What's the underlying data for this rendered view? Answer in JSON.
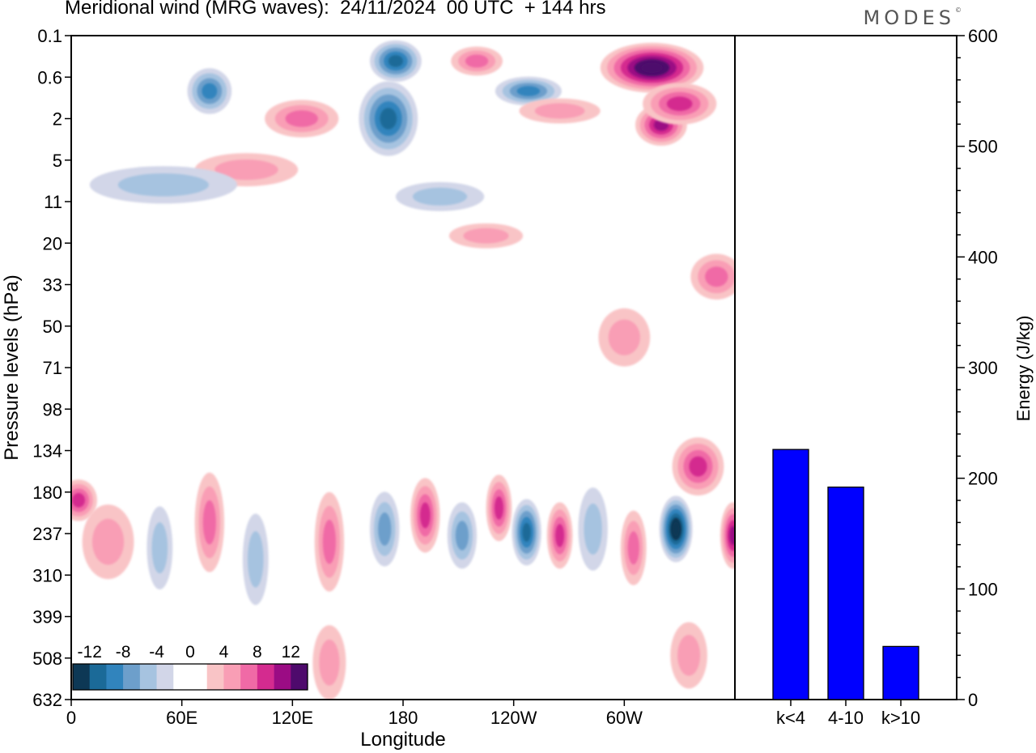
{
  "title": "Meridional wind (MRG waves):  24/11/2024  00 UTC  + 144 hrs",
  "logo": "MODES",
  "chart_data": [
    {
      "type": "heatmap",
      "xlabel": "Longitude",
      "ylabel": "Pressure levels (hPa)",
      "xticks": [
        "0",
        "60E",
        "120E",
        "180",
        "120W",
        "60W"
      ],
      "xtick_values": [
        0,
        60,
        120,
        180,
        240,
        300
      ],
      "xlim": [
        0,
        360
      ],
      "yticks": [
        "0.1",
        "0.6",
        "2",
        "5",
        "11",
        "20",
        "33",
        "50",
        "71",
        "98",
        "134",
        "180",
        "237",
        "310",
        "399",
        "508",
        "632"
      ],
      "colorbar": {
        "labels": [
          "-12",
          "-8",
          "-4",
          "0",
          "4",
          "8",
          "12"
        ],
        "label_values": [
          -12,
          -8,
          -4,
          0,
          4,
          8,
          12
        ],
        "range": [
          -14,
          14
        ],
        "colors": [
          "#0d3855",
          "#1b6a98",
          "#3184bd",
          "#6d9fcb",
          "#a6c3e0",
          "#d2d6e8",
          "#ffffff",
          "#ffffff",
          "#f9c4c6",
          "#f99eb5",
          "#f06aa6",
          "#d42b8f",
          "#9b0c84",
          "#4e0a6c"
        ]
      },
      "features": [
        {
          "lon": 75,
          "lev": 0.9,
          "w": 12,
          "h": 0.55,
          "v": -8
        },
        {
          "lon": 172,
          "lev": 2.0,
          "w": 16,
          "h": 0.9,
          "v": -10
        },
        {
          "lon": 176,
          "lev": 0.3,
          "w": 14,
          "h": 0.5,
          "v": -10
        },
        {
          "lon": 248,
          "lev": 0.9,
          "w": 18,
          "h": 0.35,
          "v": -8
        },
        {
          "lon": 315,
          "lev": 0.4,
          "w": 28,
          "h": 0.6,
          "v": 14
        },
        {
          "lon": 320,
          "lev": 2.3,
          "w": 14,
          "h": 0.5,
          "v": 9
        },
        {
          "lon": 330,
          "lev": 1.3,
          "w": 20,
          "h": 0.5,
          "v": 8
        },
        {
          "lon": 125,
          "lev": 2.0,
          "w": 20,
          "h": 0.45,
          "v": 5
        },
        {
          "lon": 95,
          "lev": 6.0,
          "w": 28,
          "h": 0.4,
          "v": 4
        },
        {
          "lon": 220,
          "lev": 0.3,
          "w": 14,
          "h": 0.35,
          "v": 5
        },
        {
          "lon": 265,
          "lev": 1.6,
          "w": 22,
          "h": 0.3,
          "v": 3
        },
        {
          "lon": 50,
          "lev": 8.0,
          "w": 40,
          "h": 0.45,
          "v": -3
        },
        {
          "lon": 200,
          "lev": 10.0,
          "w": 24,
          "h": 0.35,
          "v": -3
        },
        {
          "lon": 225,
          "lev": 18.0,
          "w": 20,
          "h": 0.3,
          "v": 3
        },
        {
          "lon": 350,
          "lev": 30.0,
          "w": 14,
          "h": 0.55,
          "v": 5
        },
        {
          "lon": 300,
          "lev": 55.0,
          "w": 14,
          "h": 0.7,
          "v": 3
        },
        {
          "lon": 340,
          "lev": 150.0,
          "w": 14,
          "h": 0.7,
          "v": 7
        },
        {
          "lon": 4,
          "lev": 190.0,
          "w": 10,
          "h": 0.5,
          "v": 8
        },
        {
          "lon": 20,
          "lev": 250.0,
          "w": 14,
          "h": 0.9,
          "v": 4
        },
        {
          "lon": 48,
          "lev": 260.0,
          "w": 7,
          "h": 1.0,
          "v": -4
        },
        {
          "lon": 75,
          "lev": 220.0,
          "w": 8,
          "h": 1.2,
          "v": 6
        },
        {
          "lon": 100,
          "lev": 280.0,
          "w": 7,
          "h": 1.1,
          "v": -3
        },
        {
          "lon": 140,
          "lev": 250.0,
          "w": 8,
          "h": 1.2,
          "v": 5
        },
        {
          "lon": 170,
          "lev": 230.0,
          "w": 8,
          "h": 0.9,
          "v": -6
        },
        {
          "lon": 192,
          "lev": 210.0,
          "w": 8,
          "h": 0.9,
          "v": 8
        },
        {
          "lon": 212,
          "lev": 240.0,
          "w": 8,
          "h": 0.8,
          "v": -6
        },
        {
          "lon": 232,
          "lev": 200.0,
          "w": 7,
          "h": 0.8,
          "v": 7
        },
        {
          "lon": 247,
          "lev": 235.0,
          "w": 8,
          "h": 0.8,
          "v": -10
        },
        {
          "lon": 265,
          "lev": 240.0,
          "w": 7,
          "h": 0.8,
          "v": 8
        },
        {
          "lon": 283,
          "lev": 230.0,
          "w": 8,
          "h": 1.0,
          "v": -4
        },
        {
          "lon": 305,
          "lev": 260.0,
          "w": 7,
          "h": 0.9,
          "v": 5
        },
        {
          "lon": 328,
          "lev": 230.0,
          "w": 9,
          "h": 0.8,
          "v": -13
        },
        {
          "lon": 359,
          "lev": 240.0,
          "w": 7,
          "h": 0.8,
          "v": 9
        },
        {
          "lon": 140,
          "lev": 520.0,
          "w": 9,
          "h": 0.9,
          "v": 3
        },
        {
          "lon": 335,
          "lev": 500.0,
          "w": 10,
          "h": 0.8,
          "v": 4
        }
      ]
    },
    {
      "type": "bar",
      "categories": [
        "k<4",
        "4-10",
        "k>10"
      ],
      "values": [
        226,
        192,
        48
      ],
      "ylabel": "Energy (J/kg)",
      "ylim": [
        0,
        600
      ],
      "yticks": [
        0,
        100,
        200,
        300,
        400,
        500,
        600
      ],
      "bar_color": "#0000ff"
    }
  ]
}
